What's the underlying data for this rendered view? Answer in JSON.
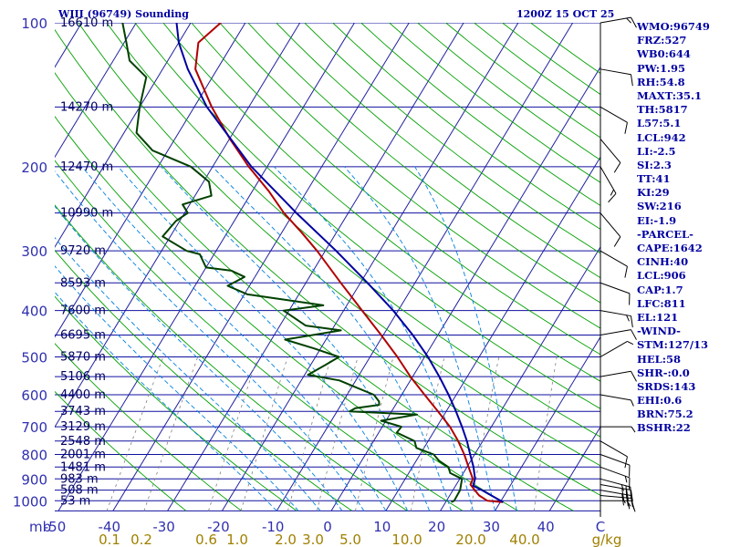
{
  "chart_data": {
    "type": "line",
    "title": "WIII (96749) Sounding",
    "valid_time": "1200Z 15 OCT 25",
    "xlabel_left": "mb",
    "xlabel_right": "g/kg",
    "temperature_ticks": [
      "-50",
      "-40",
      "-30",
      "-20",
      "-10",
      "0",
      "10",
      "20",
      "30",
      "40",
      "C"
    ],
    "mixing_ratio_ticks": [
      "0.1",
      "0.2",
      "0.6",
      "1.0",
      "2.0",
      "3.0",
      "5.0",
      "10.0",
      "20.0",
      "40.0"
    ],
    "pressure_ticks": [
      "100",
      "200",
      "300",
      "400",
      "500",
      "600",
      "700",
      "800",
      "900",
      "1000"
    ],
    "height_labels": [
      {
        "p": 100,
        "label": "16610 m"
      },
      {
        "p": 150,
        "label": "14270 m"
      },
      {
        "p": 200,
        "label": "12470 m"
      },
      {
        "p": 250,
        "label": "10990 m"
      },
      {
        "p": 300,
        "label": "9720 m"
      },
      {
        "p": 350,
        "label": "8593 m"
      },
      {
        "p": 400,
        "label": "7600 m"
      },
      {
        "p": 450,
        "label": "6695 m"
      },
      {
        "p": 500,
        "label": "5870 m"
      },
      {
        "p": 550,
        "label": "5106 m"
      },
      {
        "p": 600,
        "label": "4400 m"
      },
      {
        "p": 650,
        "label": "3743 m"
      },
      {
        "p": 700,
        "label": "3129 m"
      },
      {
        "p": 750,
        "label": "2548 m"
      },
      {
        "p": 800,
        "label": "2001 m"
      },
      {
        "p": 850,
        "label": "1481 m"
      },
      {
        "p": 900,
        "label": "983 m"
      },
      {
        "p": 950,
        "label": "508 m"
      },
      {
        "p": 1000,
        "label": "53 m"
      }
    ],
    "y_range_hpa": [
      100,
      1050
    ],
    "x_range_celsius": [
      -50,
      50
    ],
    "series": [
      {
        "name": "temperature",
        "color": "#b00000",
        "points": [
          [
            1006,
            30.5
          ],
          [
            1000,
            27.5
          ],
          [
            975,
            25.4
          ],
          [
            950,
            24.0
          ],
          [
            925,
            22.6
          ],
          [
            900,
            22.4
          ],
          [
            850,
            20.3
          ],
          [
            800,
            18.1
          ],
          [
            750,
            15.5
          ],
          [
            700,
            12.4
          ],
          [
            650,
            8.5
          ],
          [
            600,
            4.2
          ],
          [
            550,
            -0.4
          ],
          [
            500,
            -5.0
          ],
          [
            450,
            -10.4
          ],
          [
            400,
            -16.6
          ],
          [
            350,
            -23.6
          ],
          [
            300,
            -31.5
          ],
          [
            275,
            -36.3
          ],
          [
            250,
            -41.8
          ],
          [
            225,
            -47.0
          ],
          [
            200,
            -53.4
          ],
          [
            175,
            -59.9
          ],
          [
            150,
            -66.8
          ],
          [
            125,
            -74.0
          ],
          [
            110,
            -76.4
          ],
          [
            100,
            -74.5
          ]
        ]
      },
      {
        "name": "dewpoint",
        "color": "#004000",
        "points": [
          [
            1006,
            21.0
          ],
          [
            1000,
            21.4
          ],
          [
            950,
            21.3
          ],
          [
            900,
            20.4
          ],
          [
            875,
            17.6
          ],
          [
            850,
            16.6
          ],
          [
            825,
            14.2
          ],
          [
            800,
            12.5
          ],
          [
            775,
            8.6
          ],
          [
            750,
            7.5
          ],
          [
            720,
            3.3
          ],
          [
            700,
            3.5
          ],
          [
            680,
            -0.9
          ],
          [
            660,
            5.0
          ],
          [
            650,
            -7.7
          ],
          [
            640,
            -7.0
          ],
          [
            630,
            -3.0
          ],
          [
            620,
            -3.4
          ],
          [
            600,
            -5.1
          ],
          [
            580,
            -9.0
          ],
          [
            560,
            -13.0
          ],
          [
            545,
            -19.4
          ],
          [
            520,
            -17.3
          ],
          [
            500,
            -15.7
          ],
          [
            480,
            -21.2
          ],
          [
            460,
            -27.5
          ],
          [
            440,
            -18.3
          ],
          [
            430,
            -25.3
          ],
          [
            400,
            -31.0
          ],
          [
            390,
            -24.3
          ],
          [
            370,
            -39.4
          ],
          [
            355,
            -44.0
          ],
          [
            340,
            -41.9
          ],
          [
            330,
            -45.0
          ],
          [
            325,
            -50.0
          ],
          [
            305,
            -52.6
          ],
          [
            300,
            -55.4
          ],
          [
            280,
            -61.4
          ],
          [
            260,
            -60.7
          ],
          [
            250,
            -59.4
          ],
          [
            240,
            -61.3
          ],
          [
            230,
            -57.0
          ],
          [
            215,
            -59.0
          ],
          [
            200,
            -64.0
          ],
          [
            185,
            -72.8
          ],
          [
            170,
            -77.7
          ],
          [
            150,
            -80.0
          ],
          [
            130,
            -82.1
          ],
          [
            120,
            -87.0
          ],
          [
            110,
            -89.6
          ],
          [
            100,
            -92.5
          ]
        ]
      },
      {
        "name": "parcel",
        "color": "#0000a0",
        "points": [
          [
            1006,
            30.5
          ],
          [
            950,
            25.3
          ],
          [
            930,
            23.2
          ],
          [
            900,
            22.8
          ],
          [
            850,
            21.2
          ],
          [
            800,
            19.2
          ],
          [
            750,
            17.1
          ],
          [
            700,
            14.6
          ],
          [
            650,
            11.8
          ],
          [
            600,
            8.6
          ],
          [
            550,
            4.9
          ],
          [
            500,
            0.6
          ],
          [
            450,
            -4.6
          ],
          [
            400,
            -10.9
          ],
          [
            350,
            -18.7
          ],
          [
            300,
            -28.0
          ],
          [
            250,
            -39.5
          ],
          [
            200,
            -52.9
          ],
          [
            150,
            -67.7
          ],
          [
            125,
            -75.4
          ],
          [
            110,
            -80.0
          ],
          [
            100,
            -82.6
          ]
        ]
      }
    ],
    "wind_barbs": [
      {
        "p": 1000,
        "dir": 90,
        "spd": 15
      },
      {
        "p": 975,
        "dir": 95,
        "spd": 25
      },
      {
        "p": 950,
        "dir": 100,
        "spd": 30
      },
      {
        "p": 925,
        "dir": 100,
        "spd": 30
      },
      {
        "p": 900,
        "dir": 105,
        "spd": 25
      },
      {
        "p": 850,
        "dir": 110,
        "spd": 15
      },
      {
        "p": 800,
        "dir": 110,
        "spd": 10
      },
      {
        "p": 750,
        "dir": 120,
        "spd": 10
      },
      {
        "p": 700,
        "dir": 90,
        "spd": 5
      },
      {
        "p": 600,
        "dir": 100,
        "spd": 5
      },
      {
        "p": 550,
        "dir": 80,
        "spd": 10
      },
      {
        "p": 500,
        "dir": 60,
        "spd": 5
      },
      {
        "p": 450,
        "dir": 80,
        "spd": 10
      },
      {
        "p": 400,
        "dir": 100,
        "spd": 15
      },
      {
        "p": 350,
        "dir": 110,
        "spd": 10
      },
      {
        "p": 300,
        "dir": 120,
        "spd": 10
      },
      {
        "p": 250,
        "dir": 140,
        "spd": 10
      },
      {
        "p": 200,
        "dir": 150,
        "spd": 15
      },
      {
        "p": 175,
        "dir": 140,
        "spd": 10
      },
      {
        "p": 150,
        "dir": 120,
        "spd": 10
      },
      {
        "p": 125,
        "dir": 100,
        "spd": 10
      },
      {
        "p": 100,
        "dir": 80,
        "spd": 15
      }
    ],
    "grid": true
  },
  "indices": [
    "WMO:96749",
    "FRZ:527",
    "WB0:644",
    "PW:1.95",
    "RH:54.8",
    "MAXT:35.1",
    "TH:5817",
    "L57:5.1",
    "LCL:942",
    "LI:-2.5",
    "SI:2.3",
    "TT:41",
    "KI:29",
    "SW:216",
    "EI:-1.9",
    "-PARCEL-",
    "CAPE:1642",
    "CINH:40",
    "LCL:906",
    "CAP:1.7",
    "LFC:811",
    "EL:121",
    "-WIND-",
    "STM:127/13",
    "HEL:58",
    "SHR-:0.0",
    "SRDS:143",
    "EHI:0.6",
    "BRN:75.2",
    "BSHR:22"
  ],
  "colors": {
    "isobar": "#1010a0",
    "isotherm": "#2020a0",
    "dry_adiabat": "#00a000",
    "moist_adiabat": "#0080e0",
    "mixing_ratio": "#808080",
    "text": "#0000a0"
  }
}
